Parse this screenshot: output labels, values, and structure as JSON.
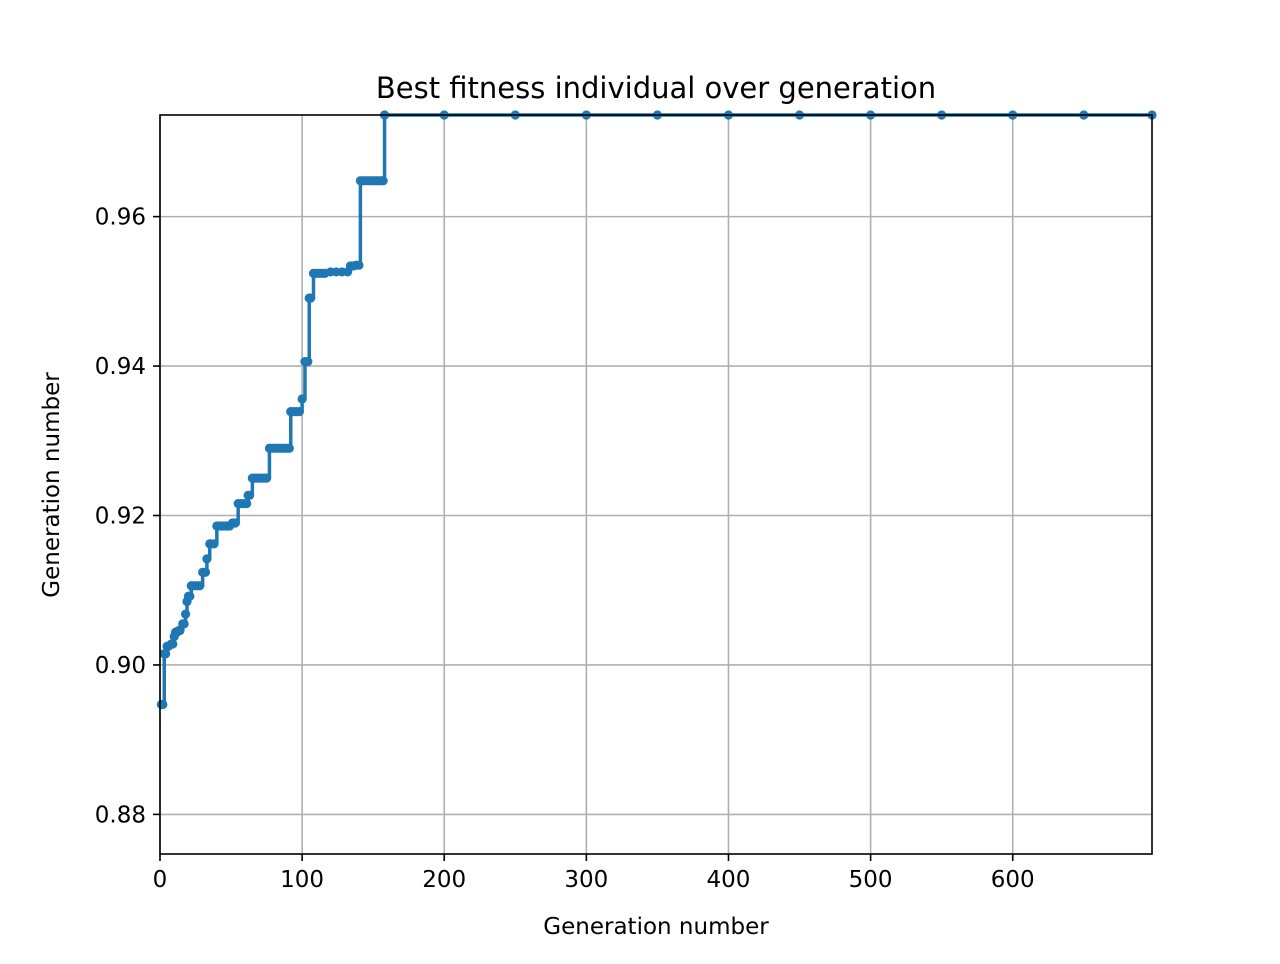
{
  "chart_data": {
    "type": "line",
    "title": "Best fitness individual over generation",
    "xlabel": "Generation number",
    "ylabel": "Generation number",
    "xlim": [
      0,
      698
    ],
    "ylim": [
      0.8747,
      0.9736
    ],
    "x_ticks": [
      0,
      100,
      200,
      300,
      400,
      500,
      600
    ],
    "y_ticks": [
      0.88,
      0.9,
      0.92,
      0.94,
      0.96
    ],
    "y_tick_labels": [
      "0.88",
      "0.90",
      "0.92",
      "0.94",
      "0.96"
    ],
    "x_tick_labels": [
      "0",
      "100",
      "200",
      "300",
      "400",
      "500",
      "600"
    ],
    "grid": true,
    "color": "#1f77b4",
    "marker": "o",
    "points": [
      [
        1,
        0.8947
      ],
      [
        2,
        0.8947
      ],
      [
        3,
        0.9015
      ],
      [
        4,
        0.9015
      ],
      [
        5,
        0.9025
      ],
      [
        6,
        0.9025
      ],
      [
        8,
        0.9028
      ],
      [
        9,
        0.9028
      ],
      [
        10,
        0.9038
      ],
      [
        11,
        0.9044
      ],
      [
        12,
        0.9044
      ],
      [
        13,
        0.9046
      ],
      [
        14,
        0.9046
      ],
      [
        16,
        0.9055
      ],
      [
        17,
        0.9055
      ],
      [
        18,
        0.9068
      ],
      [
        19,
        0.9085
      ],
      [
        20,
        0.9092
      ],
      [
        21,
        0.9092
      ],
      [
        22,
        0.9106
      ],
      [
        24,
        0.9106
      ],
      [
        26,
        0.9106
      ],
      [
        28,
        0.9106
      ],
      [
        30,
        0.9124
      ],
      [
        31,
        0.9124
      ],
      [
        32,
        0.9124
      ],
      [
        33,
        0.9142
      ],
      [
        35,
        0.9162
      ],
      [
        36,
        0.9162
      ],
      [
        38,
        0.9162
      ],
      [
        40,
        0.9186
      ],
      [
        41,
        0.9186
      ],
      [
        43,
        0.9186
      ],
      [
        45,
        0.9186
      ],
      [
        47,
        0.9186
      ],
      [
        49,
        0.9186
      ],
      [
        51,
        0.919
      ],
      [
        53,
        0.919
      ],
      [
        55,
        0.9216
      ],
      [
        57,
        0.9216
      ],
      [
        59,
        0.9216
      ],
      [
        61,
        0.9216
      ],
      [
        62,
        0.9227
      ],
      [
        63,
        0.9227
      ],
      [
        65,
        0.925
      ],
      [
        67,
        0.925
      ],
      [
        69,
        0.925
      ],
      [
        71,
        0.925
      ],
      [
        73,
        0.925
      ],
      [
        75,
        0.925
      ],
      [
        77,
        0.929
      ],
      [
        79,
        0.929
      ],
      [
        81,
        0.929
      ],
      [
        83,
        0.929
      ],
      [
        85,
        0.929
      ],
      [
        87,
        0.929
      ],
      [
        89,
        0.929
      ],
      [
        91,
        0.929
      ],
      [
        92,
        0.9339
      ],
      [
        94,
        0.9339
      ],
      [
        96,
        0.9339
      ],
      [
        98,
        0.9339
      ],
      [
        100,
        0.9356
      ],
      [
        102,
        0.9406
      ],
      [
        104,
        0.9406
      ],
      [
        105,
        0.9491
      ],
      [
        106,
        0.9491
      ],
      [
        108,
        0.9524
      ],
      [
        110,
        0.9524
      ],
      [
        112,
        0.9524
      ],
      [
        114,
        0.9524
      ],
      [
        116,
        0.9524
      ],
      [
        120,
        0.9526
      ],
      [
        124,
        0.9526
      ],
      [
        128,
        0.9526
      ],
      [
        132,
        0.9526
      ],
      [
        134,
        0.9534
      ],
      [
        136,
        0.9534
      ],
      [
        138,
        0.9535
      ],
      [
        140,
        0.9535
      ],
      [
        141,
        0.9648
      ],
      [
        143,
        0.9648
      ],
      [
        145,
        0.9648
      ],
      [
        147,
        0.9648
      ],
      [
        149,
        0.9648
      ],
      [
        151,
        0.9648
      ],
      [
        153,
        0.9648
      ],
      [
        155,
        0.9648
      ],
      [
        157,
        0.9648
      ],
      [
        158,
        0.9736
      ],
      [
        200,
        0.9736
      ],
      [
        250,
        0.9736
      ],
      [
        300,
        0.9736
      ],
      [
        350,
        0.9736
      ],
      [
        400,
        0.9736
      ],
      [
        450,
        0.9736
      ],
      [
        500,
        0.9736
      ],
      [
        550,
        0.9736
      ],
      [
        600,
        0.9736
      ],
      [
        650,
        0.9736
      ],
      [
        698,
        0.9736
      ]
    ]
  }
}
